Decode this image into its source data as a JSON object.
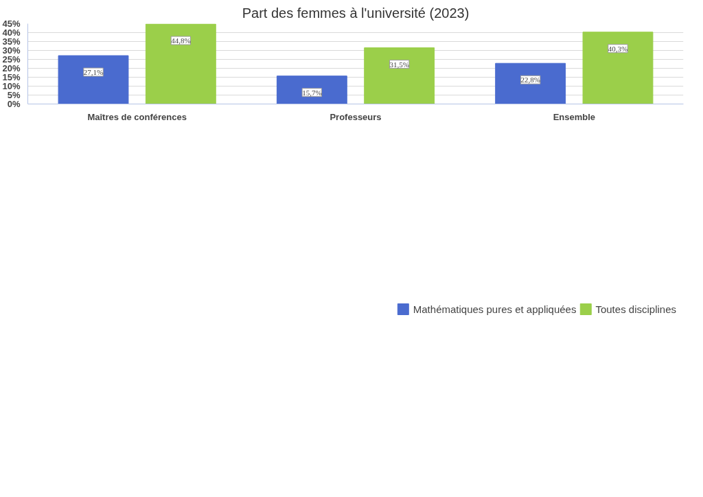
{
  "chart_data": {
    "type": "bar",
    "title": "Part des femmes à l'université (2023)",
    "categories": [
      "Maîtres de conférences",
      "Professeurs",
      "Ensemble"
    ],
    "series": [
      {
        "name": "Mathématiques pures et appliquées",
        "color": "#4a6bcf",
        "values": [
          27.1,
          15.7,
          22.8
        ],
        "value_labels": [
          "27,1%",
          "15,7%",
          "22,8%"
        ]
      },
      {
        "name": "Toutes disciplines",
        "color": "#9bcf4a",
        "values": [
          44.8,
          31.5,
          40.3
        ],
        "value_labels": [
          "44,8%",
          "31,5%",
          "40,3%"
        ]
      }
    ],
    "ylim": [
      0,
      45
    ],
    "yticks": [
      {
        "value": 0,
        "label": "0%"
      },
      {
        "value": 5,
        "label": "5%"
      },
      {
        "value": 10,
        "label": "10%"
      },
      {
        "value": 15,
        "label": "15%"
      },
      {
        "value": 20,
        "label": "20%"
      },
      {
        "value": 25,
        "label": "25%"
      },
      {
        "value": 30,
        "label": "30%"
      },
      {
        "value": 35,
        "label": "35%"
      },
      {
        "value": 40,
        "label": "40%"
      },
      {
        "value": 45,
        "label": "45%"
      }
    ],
    "grid": "y",
    "legend": "bottom"
  }
}
